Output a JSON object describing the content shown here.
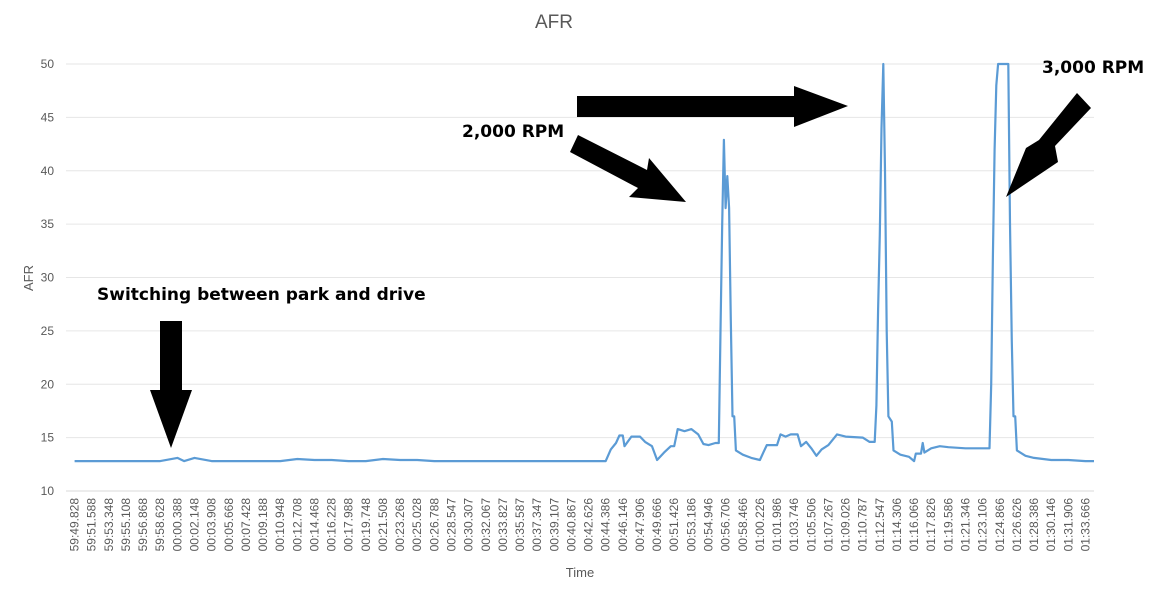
{
  "chart_data": {
    "type": "line",
    "title": "AFR",
    "xlabel": "Time",
    "ylabel": "AFR",
    "ylim": [
      10,
      50
    ],
    "yticks": [
      10,
      15,
      20,
      25,
      30,
      35,
      40,
      45,
      50
    ],
    "grid": "horizontal",
    "legend": "none",
    "line_color": "#5B9BD5",
    "categories": [
      "59:49.828",
      "59:51.588",
      "59:53.348",
      "59:55.108",
      "59:56.868",
      "59:58.628",
      "00:00.388",
      "00:02.148",
      "00:03.908",
      "00:05.668",
      "00:07.428",
      "00:09.188",
      "00:10.948",
      "00:12.708",
      "00:14.468",
      "00:16.228",
      "00:17.988",
      "00:19.748",
      "00:21.508",
      "00:23.268",
      "00:25.028",
      "00:26.788",
      "00:28.547",
      "00:30.307",
      "00:32.067",
      "00:33.827",
      "00:35.587",
      "00:37.347",
      "00:39.107",
      "00:40.867",
      "00:42.626",
      "00:44.386",
      "00:46.146",
      "00:47.906",
      "00:49.666",
      "00:51.426",
      "00:53.186",
      "00:54.946",
      "00:56.706",
      "00:58.466",
      "01:00.226",
      "01:01.986",
      "01:03.746",
      "01:05.506",
      "01:07.267",
      "01:09.026",
      "01:10.787",
      "01:12.547",
      "01:14.306",
      "01:16.066",
      "01:17.826",
      "01:19.586",
      "01:21.346",
      "01:23.106",
      "01:24.866",
      "01:26.626",
      "01:28.386",
      "01:30.146",
      "01:31.906",
      "01:33.666"
    ],
    "series": [
      {
        "values": [
          [
            0,
            12.8
          ],
          [
            1,
            12.8
          ],
          [
            2,
            12.8
          ],
          [
            3,
            12.8
          ],
          [
            4,
            12.8
          ],
          [
            5,
            12.8
          ],
          [
            6,
            13.1
          ],
          [
            6.4,
            12.8
          ],
          [
            7,
            13.1
          ],
          [
            8,
            12.8
          ],
          [
            9,
            12.8
          ],
          [
            10,
            12.8
          ],
          [
            11,
            12.8
          ],
          [
            12,
            12.8
          ],
          [
            13,
            13.0
          ],
          [
            14,
            12.9
          ],
          [
            15,
            12.9
          ],
          [
            16,
            12.8
          ],
          [
            17,
            12.8
          ],
          [
            18,
            13.0
          ],
          [
            19,
            12.9
          ],
          [
            20,
            12.9
          ],
          [
            21,
            12.8
          ],
          [
            22,
            12.8
          ],
          [
            23,
            12.8
          ],
          [
            24,
            12.8
          ],
          [
            25,
            12.8
          ],
          [
            26,
            12.8
          ],
          [
            27,
            12.8
          ],
          [
            28,
            12.8
          ],
          [
            29,
            12.8
          ],
          [
            30,
            12.8
          ],
          [
            31.0,
            12.8
          ],
          [
            31.3,
            13.9
          ],
          [
            31.6,
            14.5
          ],
          [
            31.8,
            15.2
          ],
          [
            32.0,
            15.2
          ],
          [
            32.1,
            14.2
          ],
          [
            32.5,
            15.1
          ],
          [
            33.0,
            15.1
          ],
          [
            33.3,
            14.6
          ],
          [
            33.7,
            14.2
          ],
          [
            34.0,
            12.9
          ],
          [
            34.4,
            13.6
          ],
          [
            34.8,
            14.2
          ],
          [
            35.0,
            14.2
          ],
          [
            35.2,
            15.8
          ],
          [
            35.6,
            15.6
          ],
          [
            36.0,
            15.8
          ],
          [
            36.4,
            15.3
          ],
          [
            36.7,
            14.4
          ],
          [
            37.0,
            14.3
          ],
          [
            37.4,
            14.5
          ],
          [
            37.6,
            14.5
          ],
          [
            37.7,
            25
          ],
          [
            37.8,
            35
          ],
          [
            37.9,
            42.9
          ],
          [
            38.0,
            36.5
          ],
          [
            38.1,
            39.5
          ],
          [
            38.2,
            36.5
          ],
          [
            38.3,
            26
          ],
          [
            38.4,
            17
          ],
          [
            38.5,
            17
          ],
          [
            38.6,
            13.8
          ],
          [
            39.0,
            13.4
          ],
          [
            39.5,
            13.1
          ],
          [
            40.0,
            12.9
          ],
          [
            40.2,
            13.6
          ],
          [
            40.4,
            14.3
          ],
          [
            41.0,
            14.3
          ],
          [
            41.2,
            15.3
          ],
          [
            41.5,
            15.1
          ],
          [
            41.8,
            15.3
          ],
          [
            42.2,
            15.3
          ],
          [
            42.4,
            14.2
          ],
          [
            42.7,
            14.6
          ],
          [
            43.0,
            14.0
          ],
          [
            43.3,
            13.3
          ],
          [
            43.6,
            13.9
          ],
          [
            44.0,
            14.3
          ],
          [
            44.5,
            15.3
          ],
          [
            45.0,
            15.1
          ],
          [
            46.0,
            15.0
          ],
          [
            46.4,
            14.6
          ],
          [
            46.7,
            14.6
          ],
          [
            46.8,
            18
          ],
          [
            46.9,
            27
          ],
          [
            47.0,
            34
          ],
          [
            47.1,
            44
          ],
          [
            47.2,
            50
          ],
          [
            47.3,
            40
          ],
          [
            47.4,
            25
          ],
          [
            47.5,
            17
          ],
          [
            47.7,
            16.5
          ],
          [
            47.8,
            13.8
          ],
          [
            48.2,
            13.4
          ],
          [
            48.7,
            13.2
          ],
          [
            49.0,
            12.8
          ],
          [
            49.1,
            13.5
          ],
          [
            49.4,
            13.5
          ],
          [
            49.5,
            14.5
          ],
          [
            49.6,
            13.6
          ],
          [
            50.0,
            14.0
          ],
          [
            50.5,
            14.2
          ],
          [
            51.0,
            14.1
          ],
          [
            52.0,
            14.0
          ],
          [
            53.0,
            14.0
          ],
          [
            53.4,
            14.0
          ],
          [
            53.5,
            20
          ],
          [
            53.6,
            32
          ],
          [
            53.7,
            42
          ],
          [
            53.8,
            48
          ],
          [
            53.9,
            50
          ],
          [
            54.5,
            50
          ],
          [
            54.6,
            35
          ],
          [
            54.7,
            24
          ],
          [
            54.8,
            17
          ],
          [
            54.9,
            17
          ],
          [
            55.0,
            13.8
          ],
          [
            55.5,
            13.3
          ],
          [
            56.0,
            13.1
          ],
          [
            57.0,
            12.9
          ],
          [
            58.0,
            12.9
          ],
          [
            59,
            12.8
          ],
          [
            59.5,
            12.8
          ]
        ]
      }
    ],
    "annotations": [
      {
        "text": "Switching between park and drive"
      },
      {
        "text": "2,000 RPM"
      },
      {
        "text": "3,000 RPM"
      }
    ]
  }
}
